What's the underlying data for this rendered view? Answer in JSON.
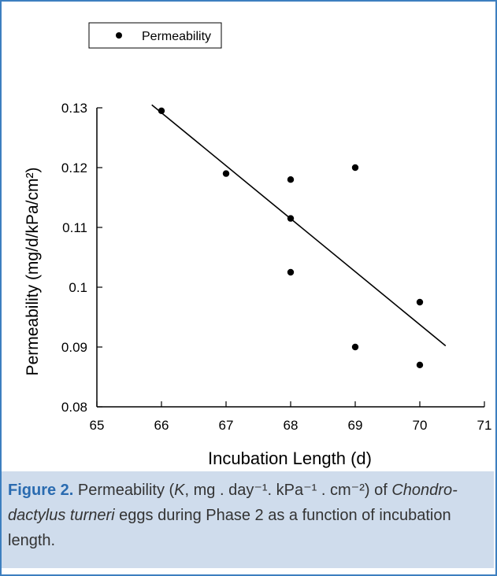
{
  "chart_data": {
    "type": "scatter",
    "xlabel": "Incubation Length (d)",
    "ylabel": "Permeability (mg/d/kPa/cm²)",
    "xlim": [
      65,
      71
    ],
    "ylim": [
      0.08,
      0.13
    ],
    "x_ticks": [
      "65",
      "66",
      "67",
      "68",
      "69",
      "70",
      "71"
    ],
    "y_ticks": [
      "0.08",
      "0.09",
      "0.1",
      "0.11",
      "0.12",
      "0.13"
    ],
    "legend": {
      "label": "Permeability",
      "placement": "top-left"
    },
    "grid": false,
    "series": [
      {
        "name": "Permeability",
        "points": [
          {
            "x": 66,
            "y": 0.1295
          },
          {
            "x": 67,
            "y": 0.119
          },
          {
            "x": 68,
            "y": 0.118
          },
          {
            "x": 68,
            "y": 0.1115
          },
          {
            "x": 68,
            "y": 0.1025
          },
          {
            "x": 69,
            "y": 0.12
          },
          {
            "x": 69,
            "y": 0.09
          },
          {
            "x": 70,
            "y": 0.0975
          },
          {
            "x": 70,
            "y": 0.087
          }
        ]
      }
    ],
    "trendline": {
      "x": [
        65.85,
        70.4
      ],
      "y": [
        0.1305,
        0.0902
      ]
    }
  },
  "caption": {
    "label": "Figure 2.",
    "text_1": " Permeability (",
    "k_symbol": "K",
    "text_2": ", mg . day⁻¹. kPa⁻¹ . cm⁻²) of ",
    "species_1": "Chondro-",
    "species_2": "dactylus turneri",
    "text_3": " eggs during Phase 2 as a function of incubation length."
  },
  "colors": {
    "frame": "#3d7fbf",
    "caption_bg": "#cfdcec",
    "caption_label": "#2a6bb0",
    "ink": "#000000"
  }
}
